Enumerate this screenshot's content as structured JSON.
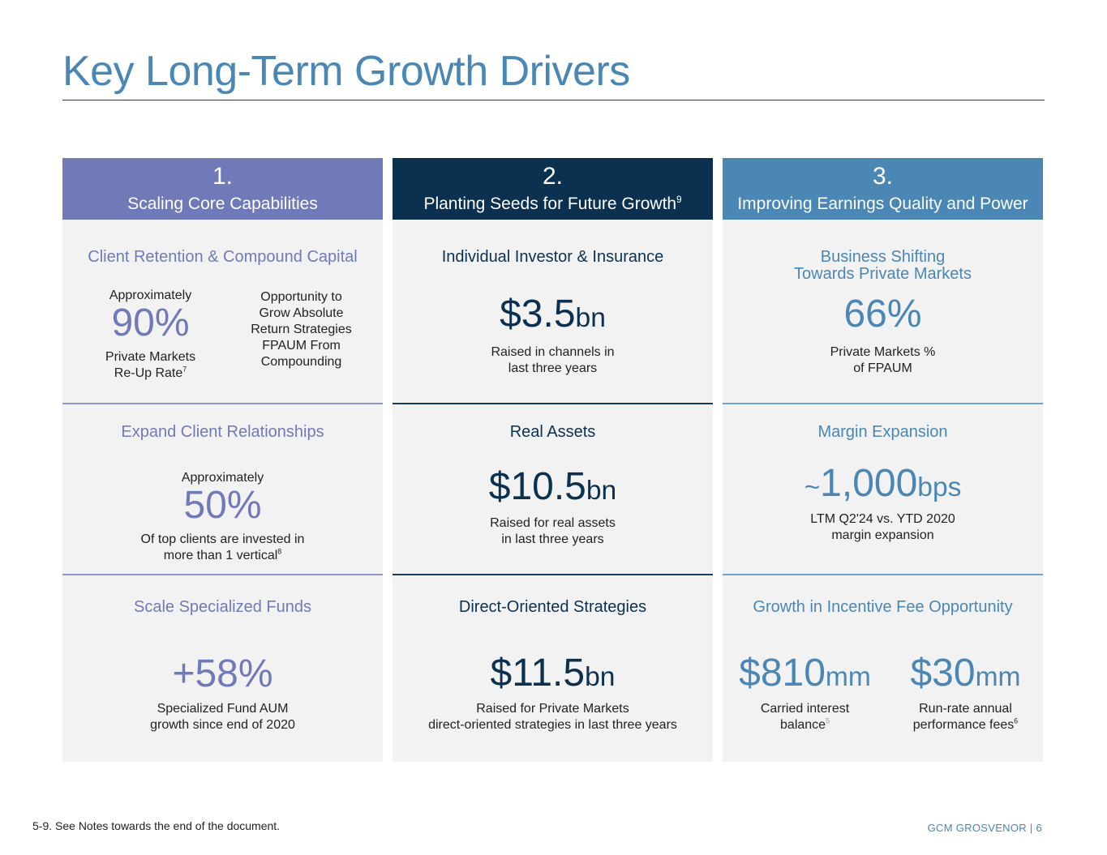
{
  "title": "Key Long-Term Growth Drivers",
  "columns": [
    {
      "number": "1.",
      "heading": "Scaling Core Capabilities",
      "sections": [
        {
          "title": "Client Retention & Compound Capital",
          "left_pre": "Approximately",
          "left_value": "90%",
          "left_caption_1": "Private Markets",
          "left_caption_2": "Re-Up Rate",
          "left_caption_sup": "7",
          "right_lines": [
            "Opportunity to",
            "Grow Absolute",
            "Return Strategies",
            "FPAUM From",
            "Compounding"
          ]
        },
        {
          "title": "Expand Client Relationships",
          "pre": "Approximately",
          "value": "50%",
          "caption_1": "Of top clients are invested in",
          "caption_2": "more than 1 vertical",
          "caption_sup": "8"
        },
        {
          "title": "Scale Specialized Funds",
          "value": "+58%",
          "caption_1": "Specialized Fund AUM",
          "caption_2": "growth since end of 2020"
        }
      ]
    },
    {
      "number": "2.",
      "heading": "Planting Seeds for Future Growth",
      "heading_sup": "9",
      "sections": [
        {
          "title": "Individual Investor & Insurance",
          "value": "$3.5",
          "unit": "bn",
          "caption_1": "Raised in channels in",
          "caption_2": "last three years"
        },
        {
          "title": "Real Assets",
          "value": "$10.5",
          "unit": "bn",
          "caption_1": "Raised for real assets",
          "caption_2": "in last three years"
        },
        {
          "title": "Direct-Oriented Strategies",
          "value": "$11.5",
          "unit": "bn",
          "caption_1": "Raised for Private Markets",
          "caption_2": "direct-oriented strategies in last three years"
        }
      ]
    },
    {
      "number": "3.",
      "heading": "Improving Earnings Quality and Power",
      "sections": [
        {
          "title_1": "Business Shifting",
          "title_2": "Towards Private Markets",
          "value": "66%",
          "caption_1": "Private Markets %",
          "caption_2": "of FPAUM"
        },
        {
          "title": "Margin Expansion",
          "value_prefix": "~",
          "value": "1,000",
          "unit": "bps",
          "caption_1": "LTM Q2'24 vs. YTD 2020",
          "caption_2": "margin expansion"
        },
        {
          "title": "Growth in Incentive Fee Opportunity",
          "left_value": "$810",
          "left_unit": "mm",
          "left_caption_1": "Carried interest",
          "left_caption_2": "balance",
          "left_caption_sup": "5",
          "right_value": "$30",
          "right_unit": "mm",
          "right_caption_1": "Run-rate annual",
          "right_caption_2": "performance fees",
          "right_caption_sup": "6"
        }
      ]
    }
  ],
  "footnote": "5-9. See Notes towards the end of the document.",
  "brand": "GCM GROSVENOR | 6",
  "colors": {
    "title": "#4a87b4",
    "col1": "#717ab8",
    "col2": "#0c3150",
    "col3": "#4a87b4",
    "panel": "#f2f2f2"
  }
}
